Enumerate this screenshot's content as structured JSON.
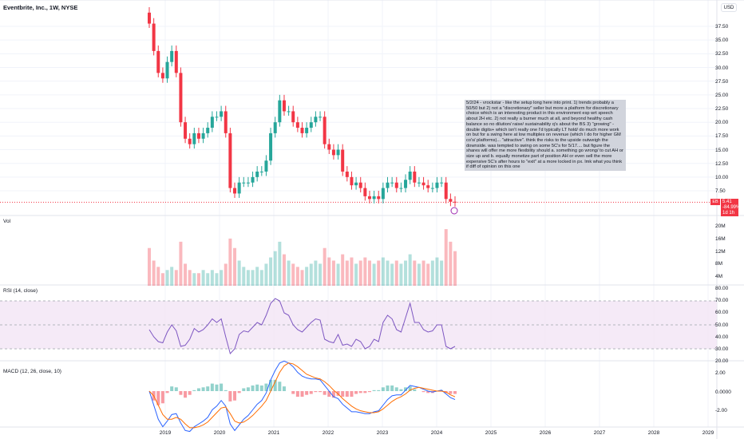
{
  "header": {
    "title": "Eventbrite, Inc., 1W, NYSE",
    "currency": "USD"
  },
  "price_axis": [
    "37.50",
    "35.00",
    "32.50",
    "30.00",
    "27.50",
    "25.00",
    "22.50",
    "20.00",
    "17.50",
    "15.00",
    "12.50",
    "10.00",
    "7.50"
  ],
  "last_price": {
    "symbol": "EB",
    "price": "5.41",
    "change": "-84.99%",
    "countdown": "1d 1h"
  },
  "annotation": "5/2/24 - vrockstar - like the setup long here into print. 1) trends probably a 50/50 but 2) not a \"discretionary\" seller but more a platform for discretionary choice which is an interesting product in this environment esp wrt speech about 2H etc. 2) not really a burner much at all, and beyond healthy cash balance so no dilution/ raise/ sustainability q's about the BS 3) \"growing\" - double digits+ which isn't really one I'd typically LT hold/ do much more work on but for a swing here at low multiples on revenue (which I do for higher GM co's/ platforms)... \"attractive\". think the risks to the upside outweigh the downside. was tempted to swing on some 5C's for 5/17.... but figure the shares will offer me more flexibility should a. something go wrong/ to cut AH or size up and b. equally monetize part of position AH or even sell the more expensive 5C's after hours to \"exit\" at a more locked in px. lmk what you think if diff of opinion on this one",
  "panes": {
    "vol": {
      "label": "Vol",
      "axis": [
        "20M",
        "16M",
        "12M",
        "8M",
        "4M"
      ]
    },
    "rsi": {
      "label": "RSI (14, close)",
      "axis": [
        "80.00",
        "70.00",
        "60.00",
        "50.00",
        "40.00",
        "30.00",
        "20.00"
      ]
    },
    "macd": {
      "label": "MACD (12, 26, close, 10)",
      "axis": [
        "2.00",
        "0.0000",
        "-2.00"
      ]
    }
  },
  "time_axis": [
    "2019",
    "2020",
    "2021",
    "2022",
    "2023",
    "2024",
    "2025",
    "2026",
    "2027",
    "2028",
    "2029"
  ],
  "colors": {
    "up": "#26a69a",
    "down": "#f23645",
    "rsi": "#7e57c2",
    "rsi_band": "#f3e5f5",
    "macd": "#2962ff",
    "signal": "#ff6d00"
  },
  "chart_data": {
    "type": "candlestick",
    "start": "2018-09",
    "interval": "1M",
    "close": [
      38,
      33,
      29,
      28,
      31,
      33,
      29,
      20,
      17,
      16,
      18,
      17,
      18,
      19,
      21,
      21,
      22,
      18,
      8,
      7,
      9,
      9,
      9,
      10,
      11,
      11,
      13,
      18,
      20,
      24,
      22,
      22,
      20,
      19,
      18,
      19,
      20,
      21,
      21,
      16,
      15,
      14,
      15,
      11,
      10,
      8.5,
      9,
      8,
      6.5,
      6,
      6.5,
      6,
      8,
      9,
      9,
      8,
      8,
      9.5,
      11,
      9,
      9,
      8.5,
      8,
      8,
      9,
      9,
      6,
      5.5,
      5.41
    ],
    "volume_m": [
      12,
      8,
      6,
      4,
      5,
      6,
      5,
      14,
      7,
      5,
      4,
      4,
      5,
      4,
      5,
      4,
      5,
      7,
      15,
      12,
      8,
      6,
      5,
      5,
      6,
      5,
      7,
      9,
      11,
      14,
      10,
      8,
      7,
      6,
      5,
      6,
      7,
      8,
      7,
      12,
      9,
      8,
      7,
      10,
      8,
      9,
      7,
      8,
      9,
      8,
      7,
      8,
      9,
      8,
      7,
      8,
      7,
      8,
      10,
      8,
      7,
      8,
      7,
      8,
      9,
      8,
      18,
      14,
      11
    ],
    "rsi": [
      46,
      40,
      36,
      35,
      44,
      50,
      45,
      32,
      33,
      38,
      47,
      44,
      46,
      50,
      55,
      52,
      55,
      40,
      26,
      30,
      42,
      45,
      44,
      48,
      52,
      50,
      58,
      68,
      72,
      70,
      60,
      58,
      50,
      46,
      44,
      48,
      52,
      55,
      54,
      38,
      36,
      35,
      42,
      33,
      34,
      32,
      38,
      36,
      30,
      32,
      38,
      36,
      52,
      58,
      55,
      46,
      44,
      56,
      68,
      52,
      52,
      46,
      44,
      45,
      50,
      50,
      32,
      30,
      32
    ],
    "macd": [
      0,
      -1.5,
      -3,
      -3.8,
      -3.2,
      -2.5,
      -2.4,
      -3.4,
      -4.2,
      -4.3,
      -3.8,
      -3.5,
      -3.2,
      -2.8,
      -2.0,
      -1.6,
      -1.0,
      -1.6,
      -3.5,
      -4.2,
      -3.6,
      -3.0,
      -2.6,
      -2.0,
      -1.4,
      -1.0,
      -0.2,
      1.2,
      2.2,
      3.0,
      3.2,
      3.0,
      2.6,
      2.0,
      1.6,
      1.4,
      1.3,
      1.3,
      1.2,
      0.6,
      0,
      -0.6,
      -0.8,
      -1.4,
      -1.8,
      -2.2,
      -2.2,
      -2.3,
      -2.4,
      -2.4,
      -2.2,
      -2.1,
      -1.5,
      -0.9,
      -0.5,
      -0.4,
      -0.4,
      0.1,
      0.6,
      0.5,
      0.4,
      0.2,
      0,
      -0.1,
      0,
      0.1,
      -0.3,
      -0.7,
      -0.9
    ],
    "signal": [
      0,
      -0.5,
      -1.5,
      -2.5,
      -3,
      -3,
      -2.8,
      -3,
      -3.5,
      -3.9,
      -3.9,
      -3.8,
      -3.6,
      -3.3,
      -2.8,
      -2.3,
      -1.8,
      -1.7,
      -2.4,
      -3.2,
      -3.4,
      -3.3,
      -3.0,
      -2.6,
      -2.1,
      -1.6,
      -1.0,
      0,
      1.0,
      2.0,
      2.7,
      3.0,
      2.9,
      2.6,
      2.2,
      1.8,
      1.6,
      1.4,
      1.3,
      1.0,
      0.6,
      0.1,
      -0.3,
      -0.8,
      -1.2,
      -1.6,
      -1.9,
      -2.1,
      -2.2,
      -2.3,
      -2.3,
      -2.2,
      -1.9,
      -1.5,
      -1.1,
      -0.8,
      -0.6,
      -0.3,
      0.1,
      0.3,
      0.4,
      0.3,
      0.2,
      0.1,
      0,
      0,
      -0.1,
      -0.4,
      -0.6
    ]
  }
}
